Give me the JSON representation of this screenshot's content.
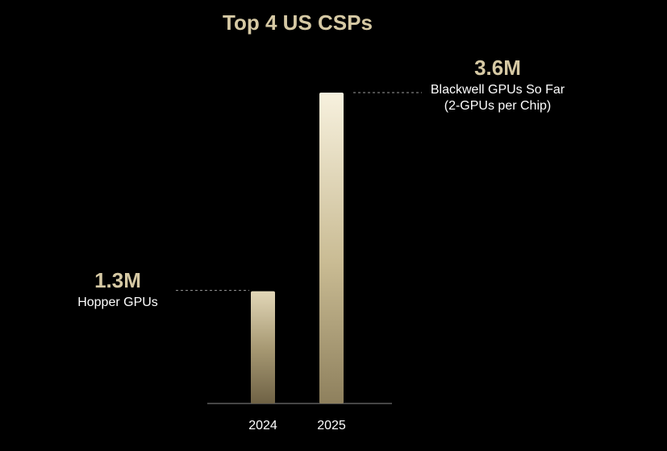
{
  "chart_data": {
    "type": "bar",
    "title": "Top 4 US CSPs",
    "categories": [
      "2024",
      "2025"
    ],
    "values": [
      1.3,
      3.6
    ],
    "unit": "M",
    "value_labels": [
      "1.3M",
      "3.6M"
    ],
    "annotations": [
      [
        "Hopper GPUs"
      ],
      [
        "Blackwell GPUs So Far",
        "(2-GPUs per Chip)"
      ]
    ],
    "xlabel": "",
    "ylabel": "",
    "ylim": [
      0,
      3.6
    ],
    "grid": false,
    "legend": "none"
  },
  "colors": {
    "background": "#000000",
    "accent_text": "#d6c9a4",
    "bar_light": "#f7f1de",
    "bar_mid": "#c9bb93",
    "bar_dark": "#7a6c4c",
    "axis": "#8a8a8a",
    "leader": "#9a9a9a"
  }
}
